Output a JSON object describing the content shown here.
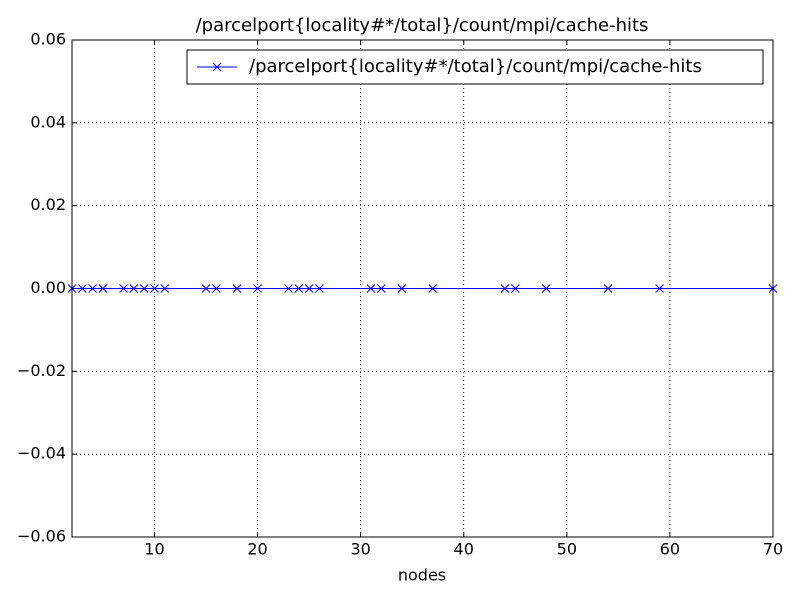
{
  "chart_data": {
    "type": "line",
    "title": "/parcelport{locality#*/total}/count/mpi/cache-hits",
    "xlabel": "nodes",
    "x": [
      2,
      3,
      4,
      5,
      7,
      8,
      9,
      10,
      11,
      15,
      16,
      18,
      20,
      23,
      24,
      25,
      26,
      31,
      32,
      34,
      37,
      44,
      45,
      48,
      54,
      59,
      70
    ],
    "series": [
      {
        "name": "/parcelport{locality#*/total}/count/mpi/cache-hits",
        "color": "#0000ff",
        "marker": "x",
        "values": [
          0,
          0,
          0,
          0,
          0,
          0,
          0,
          0,
          0,
          0,
          0,
          0,
          0,
          0,
          0,
          0,
          0,
          0,
          0,
          0,
          0,
          0,
          0,
          0,
          0,
          0,
          0
        ]
      }
    ],
    "xlim": [
      2,
      70
    ],
    "xticks": [
      10,
      20,
      30,
      40,
      50,
      60,
      70
    ],
    "ylim": [
      -0.06,
      0.06
    ],
    "yticks": [
      {
        "value": -0.06,
        "label": "−0.06"
      },
      {
        "value": -0.04,
        "label": "−0.04"
      },
      {
        "value": -0.02,
        "label": "−0.02"
      },
      {
        "value": 0,
        "label": "0.00"
      },
      {
        "value": 0.02,
        "label": "0.02"
      },
      {
        "value": 0.04,
        "label": "0.04"
      },
      {
        "value": 0.06,
        "label": "0.06"
      }
    ],
    "grid": true,
    "legend": "upper right"
  }
}
